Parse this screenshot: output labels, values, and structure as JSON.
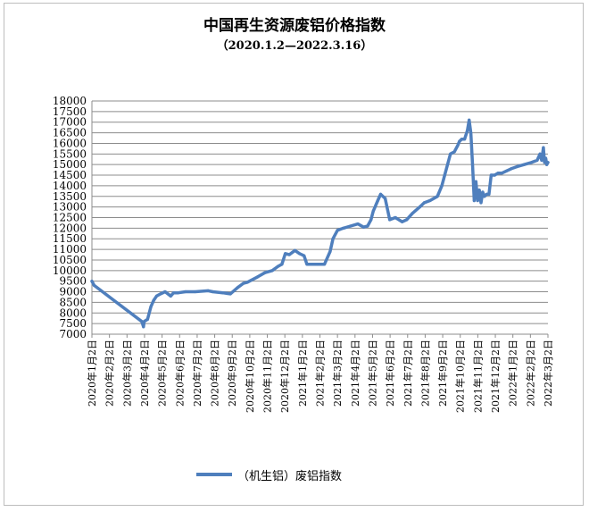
{
  "chart_data": {
    "type": "line",
    "title": "中国再生资源废铝价格指数",
    "subtitle": "（2020.1.2—2022.3.16）",
    "legend": "（机生铝）废铝指数",
    "legend_position": "bottom",
    "grid": true,
    "line_color": "#4f7fbd",
    "ylim": [
      7000,
      18000
    ],
    "yticks": [
      "7000",
      "7500",
      "8000",
      "8500",
      "9000",
      "9500",
      "10000",
      "10500",
      "11000",
      "11500",
      "12000",
      "12500",
      "13000",
      "13500",
      "14000",
      "14500",
      "15000",
      "15500",
      "16000",
      "16500",
      "17000",
      "17500",
      "18000"
    ],
    "xticks": [
      "2020年1月2日",
      "2020年2月2日",
      "2020年3月2日",
      "2020年4月2日",
      "2020年5月2日",
      "2020年6月2日",
      "2020年7月2日",
      "2020年8月2日",
      "2020年9月2日",
      "2020年10月2日",
      "2020年11月2日",
      "2020年12月2日",
      "2021年1月2日",
      "2021年2月2日",
      "2021年3月2日",
      "2021年4月2日",
      "2021年5月2日",
      "2021年6月2日",
      "2021年7月2日",
      "2021年8月2日",
      "2021年9月2日",
      "2021年10月2日",
      "2021年11月2日",
      "2021年12月2日",
      "2022年1月2日",
      "2022年2月2日",
      "2022年3月2日"
    ],
    "series": [
      {
        "name": "（机生铝）废铝指数",
        "x": [
          "2020-01-02",
          "2020-01-06",
          "2020-03-30",
          "2020-04-02",
          "2020-04-03",
          "2020-04-09",
          "2020-04-15",
          "2020-04-20",
          "2020-04-25",
          "2020-05-02",
          "2020-05-10",
          "2020-05-20",
          "2020-05-25",
          "2020-06-02",
          "2020-06-15",
          "2020-07-02",
          "2020-07-25",
          "2020-08-02",
          "2020-08-20",
          "2020-09-02",
          "2020-09-15",
          "2020-09-25",
          "2020-10-02",
          "2020-10-20",
          "2020-11-02",
          "2020-11-15",
          "2020-11-25",
          "2020-12-02",
          "2020-12-08",
          "2020-12-15",
          "2020-12-25",
          "2021-01-02",
          "2021-01-10",
          "2021-01-15",
          "2021-02-02",
          "2021-02-15",
          "2021-02-25",
          "2021-03-02",
          "2021-03-10",
          "2021-03-20",
          "2021-04-02",
          "2021-04-15",
          "2021-04-25",
          "2021-05-02",
          "2021-05-08",
          "2021-05-12",
          "2021-05-20",
          "2021-05-25",
          "2021-06-02",
          "2021-06-10",
          "2021-06-20",
          "2021-07-02",
          "2021-07-10",
          "2021-07-20",
          "2021-08-02",
          "2021-08-10",
          "2021-08-20",
          "2021-09-02",
          "2021-09-10",
          "2021-09-15",
          "2021-09-20",
          "2021-09-25",
          "2021-10-02",
          "2021-10-08",
          "2021-10-11",
          "2021-10-15",
          "2021-10-20",
          "2021-10-25",
          "2021-10-28",
          "2021-10-31",
          "2021-11-03",
          "2021-11-06",
          "2021-11-09",
          "2021-11-12",
          "2021-11-15",
          "2021-11-18",
          "2021-11-21",
          "2021-11-24",
          "2021-11-28",
          "2021-12-02",
          "2021-12-06",
          "2021-12-12",
          "2021-12-18",
          "2021-12-25",
          "2022-01-02",
          "2022-01-10",
          "2022-01-20",
          "2022-02-02",
          "2022-02-15",
          "2022-02-25",
          "2022-03-02",
          "2022-03-05",
          "2022-03-08",
          "2022-03-10",
          "2022-03-12",
          "2022-03-14",
          "2022-03-16"
        ],
        "values": [
          9500,
          9300,
          7600,
          7350,
          7600,
          7700,
          8300,
          8600,
          8800,
          8900,
          9000,
          8800,
          8950,
          8950,
          9000,
          9000,
          9050,
          9000,
          8950,
          8900,
          9200,
          9400,
          9450,
          9700,
          9900,
          10000,
          10200,
          10300,
          10800,
          10750,
          10950,
          10800,
          10700,
          10300,
          10300,
          10300,
          10900,
          11500,
          11900,
          12000,
          12100,
          12200,
          12050,
          12100,
          12400,
          12800,
          13300,
          13600,
          13400,
          12400,
          12500,
          12300,
          12400,
          12700,
          13000,
          13200,
          13300,
          13500,
          14000,
          14500,
          15000,
          15500,
          15600,
          15900,
          16100,
          16200,
          16200,
          16600,
          17100,
          16500,
          15000,
          13300,
          14200,
          13300,
          13800,
          13200,
          13700,
          13500,
          13600,
          13600,
          14500,
          14500,
          14600,
          14600,
          14700,
          14800,
          14900,
          15000,
          15100,
          15200,
          15500,
          15200,
          15800,
          15100,
          15300,
          15000,
          15100
        ]
      }
    ]
  }
}
